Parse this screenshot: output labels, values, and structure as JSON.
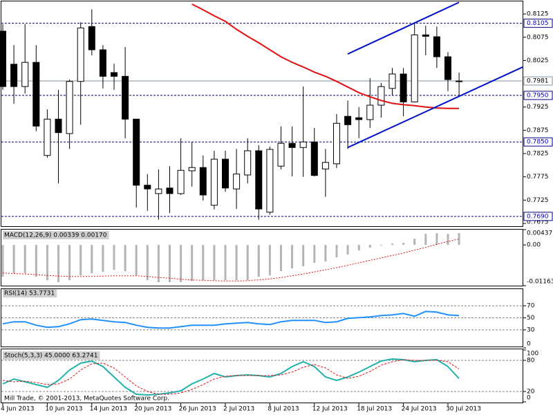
{
  "chart_data": [
    {
      "type": "candlestick",
      "categories": [
        "4 Jun 2013",
        null,
        null,
        null,
        "10 Jun 2013",
        null,
        null,
        null,
        "14 Jun 2013",
        null,
        null,
        null,
        "20 Jun 2013",
        null,
        null,
        null,
        "26 Jun 2013",
        null,
        null,
        null,
        "2 Jul 2013",
        null,
        null,
        null,
        "8 Jul 2013",
        null,
        null,
        null,
        "12 Jul 2013",
        null,
        null,
        null,
        "18 Jul 2013",
        null,
        null,
        null,
        "24 Jul 2013",
        null,
        null,
        null,
        "30 Jul 2013",
        null
      ],
      "open": [
        0.8088,
        0.8017,
        0.7969,
        0.8021,
        0.7821,
        0.7899,
        0.7868,
        0.798,
        0.8098,
        0.8048,
        0.7999,
        0.7991,
        0.7899,
        0.7757,
        0.7739,
        0.7751,
        0.7739,
        0.7788,
        0.7795,
        0.7714,
        0.7813,
        0.7749,
        0.7779,
        0.7831,
        0.7699,
        0.7798,
        0.7847,
        0.7838,
        0.785,
        0.7792,
        0.7803,
        0.7905,
        0.7902,
        0.7898,
        0.7929,
        0.7965,
        0.7996,
        0.7936,
        0.808,
        0.8076,
        0.8033,
        0.7981
      ],
      "high": [
        0.8103,
        0.8058,
        0.8103,
        0.8058,
        0.792,
        0.7962,
        0.7984,
        0.8107,
        0.8135,
        0.8058,
        0.8018,
        0.8054,
        0.7899,
        0.7781,
        0.7791,
        0.7798,
        0.7858,
        0.785,
        0.7821,
        0.7831,
        0.7831,
        0.7835,
        0.7858,
        0.7843,
        0.784,
        0.7883,
        0.7883,
        0.7969,
        0.788,
        0.7835,
        0.791,
        0.7939,
        0.7925,
        0.7987,
        0.7977,
        0.8009,
        0.8009,
        0.8107,
        0.81,
        0.8098,
        0.8043,
        0.7999
      ],
      "low": [
        0.7962,
        0.7932,
        0.7954,
        0.7873,
        0.7816,
        0.7761,
        0.7835,
        0.7887,
        0.8036,
        0.7965,
        0.7962,
        0.7858,
        0.7709,
        0.7702,
        0.7683,
        0.7697,
        0.7736,
        0.7754,
        0.7724,
        0.7705,
        0.7743,
        0.7706,
        0.7761,
        0.7683,
        0.7694,
        0.7791,
        0.7776,
        0.7775,
        0.7776,
        0.7732,
        0.7794,
        0.7835,
        0.7858,
        0.788,
        0.7902,
        0.795,
        0.7905,
        0.7935,
        0.8036,
        0.8009,
        0.7959,
        0.7947
      ],
      "close": [
        0.7969,
        0.7969,
        0.8021,
        0.7884,
        0.7899,
        0.787,
        0.798,
        0.8095,
        0.8048,
        0.7991,
        0.7991,
        0.7899,
        0.7757,
        0.7749,
        0.7749,
        0.7739,
        0.7789,
        0.7795,
        0.7736,
        0.7813,
        0.7751,
        0.7781,
        0.7831,
        0.7706,
        0.7834,
        0.7847,
        0.7838,
        0.785,
        0.7778,
        0.7806,
        0.789,
        0.7887,
        0.7898,
        0.7929,
        0.7969,
        0.7996,
        0.7936,
        0.808,
        0.8077,
        0.8033,
        0.7984,
        0.798
      ],
      "up_color": "#ffffff",
      "down_color": "#000000",
      "ma": {
        "color": "#e01010",
        "values": [
          null,
          null,
          null,
          null,
          null,
          null,
          null,
          null,
          null,
          null,
          null,
          null,
          null,
          null,
          null,
          null,
          null,
          0.8146,
          0.8134,
          0.8121,
          0.8109,
          0.8092,
          0.8077,
          0.8063,
          0.8048,
          0.8033,
          0.8021,
          0.8011,
          0.8,
          0.7991,
          0.798,
          0.7968,
          0.7956,
          0.7947,
          0.7939,
          0.7933,
          0.793,
          0.7928,
          0.7925,
          0.7923,
          0.7922,
          0.7922
        ]
      },
      "trendlines": [
        {
          "color": "#0010c8",
          "x": [
            31,
            41
          ],
          "values": [
            0.8039,
            0.815
          ],
          "extend": false
        },
        {
          "color": "#0010c8",
          "x": [
            31,
            41
          ],
          "values": [
            0.7838,
            0.7948
          ],
          "extend": true
        }
      ],
      "levels": [
        {
          "value": 0.8105,
          "label": "0.8105",
          "style": "dashed",
          "color": "#000080"
        },
        {
          "value": 0.7981,
          "label": "0.7981",
          "style": "solid",
          "color": "#8090a0"
        },
        {
          "value": 0.795,
          "label": "0.7950",
          "style": "dashed",
          "color": "#000080"
        },
        {
          "value": 0.785,
          "label": "0.7850",
          "style": "dashed",
          "color": "#000080"
        },
        {
          "value": 0.769,
          "label": "0.7690",
          "style": "dashed",
          "color": "#000080"
        }
      ],
      "ylim": [
        0.7669,
        0.8152
      ],
      "yticks": [
        0.8125,
        0.8075,
        0.8025,
        0.7925,
        0.7875,
        0.7825,
        0.7775,
        0.7725,
        0.7675
      ]
    },
    {
      "type": "macd",
      "title": "MACD(12,26,9) 0.00339 0.00170",
      "values": [
        -0.00909,
        -0.0081,
        -0.0081,
        -0.00909,
        -0.01008,
        -0.01067,
        -0.01008,
        -0.00869,
        -0.0081,
        -0.0077,
        -0.00711,
        -0.00751,
        -0.00869,
        -0.01008,
        -0.01067,
        -0.01067,
        -0.01067,
        -0.01027,
        -0.01008,
        -0.01008,
        -0.01008,
        -0.01008,
        -0.01008,
        -0.00909,
        -0.00869,
        -0.00751,
        -0.00672,
        -0.00612,
        -0.00514,
        -0.00474,
        -0.00356,
        -0.00277,
        -0.00158,
        -0.00079,
        -0.0002,
        0.0004,
        0.00059,
        0.00178,
        0.00316,
        0.00336,
        0.00316,
        0.00339
      ],
      "color": "#b4b4b4",
      "signal": {
        "color": "#e01010",
        "values": [
          -0.008,
          -0.0082,
          -0.0083,
          -0.0085,
          -0.0087,
          -0.0089,
          -0.009,
          -0.009,
          -0.009,
          -0.0089,
          -0.0088,
          -0.0088,
          -0.0088,
          -0.009,
          -0.0093,
          -0.0095,
          -0.0098,
          -0.01,
          -0.0101,
          -0.0102,
          -0.0103,
          -0.0103,
          -0.0102,
          -0.01,
          -0.0097,
          -0.0093,
          -0.0088,
          -0.0083,
          -0.0077,
          -0.0071,
          -0.0065,
          -0.0058,
          -0.0051,
          -0.0044,
          -0.0037,
          -0.003,
          -0.0023,
          -0.0015,
          -0.0007,
          0.0002,
          0.001,
          0.0017
        ]
      },
      "ylim": [
        -0.01163,
        0.00437
      ],
      "yticks": [
        0.00437,
        {
          "value": 0,
          "label": "0.00"
        },
        -0.01163
      ]
    },
    {
      "type": "line",
      "title": "RSI(14) 53.7731",
      "series": [
        {
          "color": "#1e90ff",
          "style": "solid",
          "values": [
            40,
            43.4,
            43.4,
            37.7,
            34.3,
            35.4,
            40,
            46.9,
            48,
            45.7,
            43.4,
            42.3,
            37.7,
            34.3,
            33.1,
            33.1,
            35.4,
            37.7,
            37.7,
            37.7,
            40,
            41.1,
            42.3,
            40,
            38.9,
            43.4,
            45.7,
            45.7,
            45.7,
            42.3,
            43.4,
            49.1,
            50.3,
            51.4,
            53.7,
            54.9,
            57.1,
            52.6,
            60.6,
            59.4,
            54.9,
            53.7731
          ]
        }
      ],
      "levels": [
        70,
        50,
        30
      ],
      "ylim": [
        0,
        100
      ],
      "yticks": [
        70,
        50,
        30,
        0
      ]
    },
    {
      "type": "line",
      "title": "Stoch(5,3,3) 45.0000 63.2741",
      "series": [
        {
          "color": "#20b2aa",
          "style": "solid",
          "values": [
            34.7,
            44,
            38.7,
            33.3,
            28,
            41.3,
            61.3,
            74.7,
            78.7,
            68,
            48,
            28,
            14.7,
            13.3,
            14.7,
            17.3,
            21.3,
            34.7,
            44,
            54.7,
            48,
            50.7,
            52,
            50.7,
            48,
            54.7,
            68,
            77.3,
            68,
            48,
            41.3,
            48,
            57.3,
            68,
            78.7,
            82.7,
            81.3,
            77.3,
            80,
            81.3,
            68,
            45
          ]
        },
        {
          "color": "#e01010",
          "style": "dashed",
          "values": [
            41.3,
            38.7,
            40,
            37.3,
            33.3,
            34.7,
            44,
            61.3,
            73.3,
            74.7,
            65.3,
            48,
            30.7,
            20,
            14.7,
            14.7,
            17.3,
            24,
            33.3,
            44,
            49.3,
            50.7,
            50.7,
            50.7,
            50.7,
            52,
            57.3,
            66.7,
            72,
            65.3,
            52,
            45.3,
            49.3,
            58.7,
            70.7,
            77.3,
            81.3,
            80,
            80,
            80,
            77.3,
            63.2741
          ]
        }
      ],
      "levels": [
        80,
        20
      ],
      "ylim": [
        0,
        100
      ],
      "yticks": [
        100,
        80,
        20,
        0
      ]
    }
  ],
  "footer": "Mill Trade, © 2001-2013, MetaQuotes Software Corp."
}
